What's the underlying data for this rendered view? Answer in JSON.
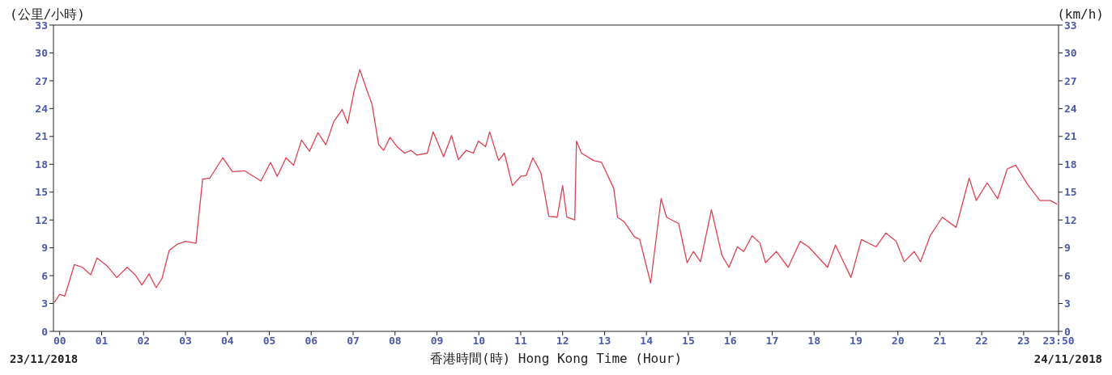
{
  "chart_data": {
    "type": "line",
    "xlabel": "香港時間(時) Hong Kong Time (Hour)",
    "ylabel": "(公里/小時)",
    "y2label": "(km/h)",
    "annotations": [
      "23/11/2018",
      "24/11/2018"
    ],
    "x": [
      -0.13,
      0.0,
      0.12,
      0.25,
      0.35,
      0.54,
      0.74,
      0.89,
      1.12,
      1.36,
      1.61,
      1.8,
      1.96,
      2.13,
      2.3,
      2.44,
      2.61,
      2.81,
      3.0,
      3.25,
      3.41,
      3.58,
      3.89,
      4.12,
      4.41,
      4.8,
      5.03,
      5.19,
      5.4,
      5.58,
      5.77,
      5.96,
      6.16,
      6.35,
      6.54,
      6.74,
      6.87,
      7.03,
      7.16,
      7.32,
      7.45,
      7.61,
      7.73,
      7.88,
      8.05,
      8.23,
      8.38,
      8.52,
      8.77,
      8.91,
      9.16,
      9.35,
      9.51,
      9.7,
      9.87,
      9.99,
      10.16,
      10.26,
      10.47,
      10.61,
      10.8,
      11.0,
      11.13,
      11.29,
      11.48,
      11.67,
      11.87,
      12.0,
      12.1,
      12.29,
      12.33,
      12.45,
      12.74,
      12.93,
      13.22,
      13.31,
      13.47,
      13.71,
      13.84,
      14.1,
      14.35,
      14.48,
      14.77,
      14.97,
      15.12,
      15.29,
      15.55,
      15.8,
      15.97,
      16.17,
      16.32,
      16.52,
      16.71,
      16.84,
      17.1,
      17.38,
      17.67,
      17.87,
      18.32,
      18.51,
      18.88,
      19.13,
      19.48,
      19.71,
      19.96,
      20.15,
      20.39,
      20.54,
      20.77,
      21.06,
      21.39,
      21.7,
      21.87,
      22.13,
      22.38,
      22.61,
      22.81,
      23.1,
      23.39,
      23.64,
      23.8
    ],
    "series": [
      {
        "color": "#e04050",
        "values": [
          3.1,
          4.0,
          3.8,
          5.7,
          7.2,
          6.9,
          6.1,
          7.9,
          7.1,
          5.8,
          6.9,
          6.1,
          5.0,
          6.2,
          4.7,
          5.7,
          8.7,
          9.4,
          9.7,
          9.5,
          16.4,
          16.5,
          18.7,
          17.2,
          17.3,
          16.2,
          18.2,
          16.7,
          18.7,
          17.9,
          20.6,
          19.4,
          21.4,
          20.1,
          22.6,
          23.9,
          22.4,
          26.0,
          28.2,
          26.1,
          24.5,
          20.1,
          19.5,
          20.9,
          19.9,
          19.2,
          19.5,
          19.0,
          19.2,
          21.5,
          18.8,
          21.1,
          18.5,
          19.5,
          19.2,
          20.5,
          19.9,
          21.5,
          18.4,
          19.2,
          15.7,
          16.7,
          16.8,
          18.7,
          17.1,
          12.4,
          12.3,
          15.7,
          12.3,
          12.0,
          20.5,
          19.2,
          18.4,
          18.2,
          15.4,
          12.3,
          11.8,
          10.2,
          9.9,
          5.2,
          14.3,
          12.3,
          11.6,
          7.4,
          8.6,
          7.5,
          13.1,
          8.2,
          6.9,
          9.1,
          8.6,
          10.3,
          9.5,
          7.4,
          8.6,
          6.9,
          9.7,
          9.1,
          6.9,
          9.3,
          5.8,
          9.9,
          9.1,
          10.6,
          9.7,
          7.5,
          8.6,
          7.5,
          10.3,
          12.3,
          11.2,
          16.5,
          14.1,
          16.0,
          14.3,
          17.5,
          17.9,
          15.8,
          14.1,
          14.1,
          13.7
        ]
      }
    ],
    "xlim": [
      -0.15,
      23.8333
    ],
    "xticks": [
      {
        "value": 0,
        "label": "00"
      },
      {
        "value": 1,
        "label": "01"
      },
      {
        "value": 2,
        "label": "02"
      },
      {
        "value": 3,
        "label": "03"
      },
      {
        "value": 4,
        "label": "04"
      },
      {
        "value": 5,
        "label": "05"
      },
      {
        "value": 6,
        "label": "06"
      },
      {
        "value": 7,
        "label": "07"
      },
      {
        "value": 8,
        "label": "08"
      },
      {
        "value": 9,
        "label": "09"
      },
      10,
      11,
      12,
      13,
      14,
      15,
      16,
      17,
      18,
      19,
      20,
      21,
      22,
      {
        "value": 23,
        "label": "23"
      },
      {
        "value": 23.8333,
        "label": "23:50"
      }
    ],
    "ylim": [
      0,
      33
    ],
    "yticks": [
      0,
      3,
      6,
      9,
      12,
      15,
      18,
      21,
      24,
      27,
      30,
      33
    ],
    "y2lim": [
      0,
      33
    ],
    "y2ticks": [
      0,
      3,
      6,
      9,
      12,
      15,
      18,
      21,
      24,
      27,
      30,
      33
    ],
    "grid": false,
    "legend": false,
    "marker": "none",
    "line_style": "solid"
  }
}
